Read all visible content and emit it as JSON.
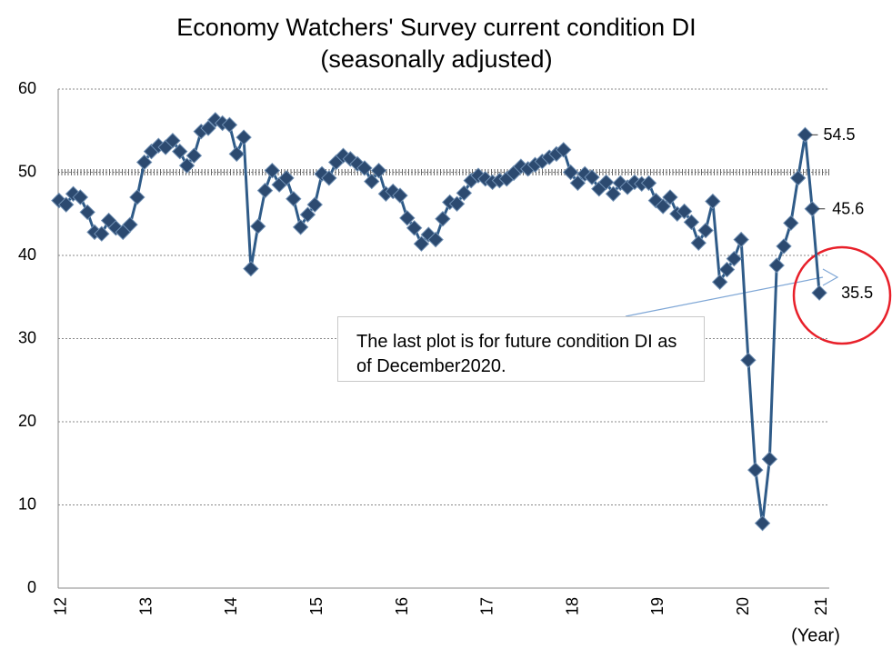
{
  "chart_data": {
    "type": "line",
    "title": "Economy Watchers' Survey current condition DI",
    "subtitle": "(seasonally adjusted)",
    "x_label": "(Year)",
    "annotation": "The last plot is for future condition DI as of December2020.",
    "categories": [
      "12",
      null,
      null,
      null,
      null,
      null,
      null,
      null,
      null,
      null,
      null,
      null,
      "13",
      null,
      null,
      null,
      null,
      null,
      null,
      null,
      null,
      null,
      null,
      null,
      "14",
      null,
      null,
      null,
      null,
      null,
      null,
      null,
      null,
      null,
      null,
      null,
      "15",
      null,
      null,
      null,
      null,
      null,
      null,
      null,
      null,
      null,
      null,
      null,
      "16",
      null,
      null,
      null,
      null,
      null,
      null,
      null,
      null,
      null,
      null,
      null,
      "17",
      null,
      null,
      null,
      null,
      null,
      null,
      null,
      null,
      null,
      null,
      null,
      "18",
      null,
      null,
      null,
      null,
      null,
      null,
      null,
      null,
      null,
      null,
      null,
      "19",
      null,
      null,
      null,
      null,
      null,
      null,
      null,
      null,
      null,
      null,
      null,
      "20",
      null,
      null,
      null,
      null,
      null,
      null,
      null,
      null,
      null,
      null,
      "21"
    ],
    "series": [
      {
        "color": "#2f5b88",
        "values": [
          46.6,
          46.1,
          47.4,
          47.0,
          45.2,
          42.8,
          42.6,
          44.2,
          43.3,
          42.8,
          43.7,
          47.0,
          51.2,
          52.5,
          53.2,
          53.0,
          53.8,
          52.5,
          50.8,
          52.0,
          54.9,
          55.3,
          56.3,
          55.9,
          55.7,
          52.2,
          54.2,
          38.4,
          43.5,
          47.8,
          50.2,
          48.5,
          49.3,
          46.8,
          43.4,
          44.9,
          46.1,
          49.8,
          49.3,
          51.2,
          52.0,
          51.6,
          51.0,
          50.5,
          48.9,
          50.2,
          47.4,
          47.7,
          47.2,
          44.5,
          43.3,
          41.4,
          42.5,
          41.9,
          44.4,
          46.4,
          46.2,
          47.5,
          49.0,
          49.6,
          49.2,
          48.8,
          49.0,
          49.2,
          49.9,
          50.7,
          50.4,
          50.9,
          51.3,
          51.8,
          52.2,
          52.7,
          50.0,
          48.7,
          49.8,
          49.4,
          48.0,
          48.8,
          47.4,
          48.7,
          48.2,
          48.8,
          48.6,
          48.7,
          46.6,
          45.9,
          47.0,
          45.0,
          45.3,
          44.0,
          41.5,
          43.0,
          46.5,
          36.8,
          38.3,
          39.6,
          41.9,
          27.4,
          14.2,
          7.8,
          15.5,
          38.8,
          41.1,
          43.9,
          49.3,
          54.5,
          45.6,
          35.5
        ]
      }
    ],
    "ylim": [
      0,
      60
    ],
    "yticks": [
      0,
      10,
      20,
      30,
      40,
      50,
      60
    ],
    "grid": true,
    "reference_line": 50
  }
}
